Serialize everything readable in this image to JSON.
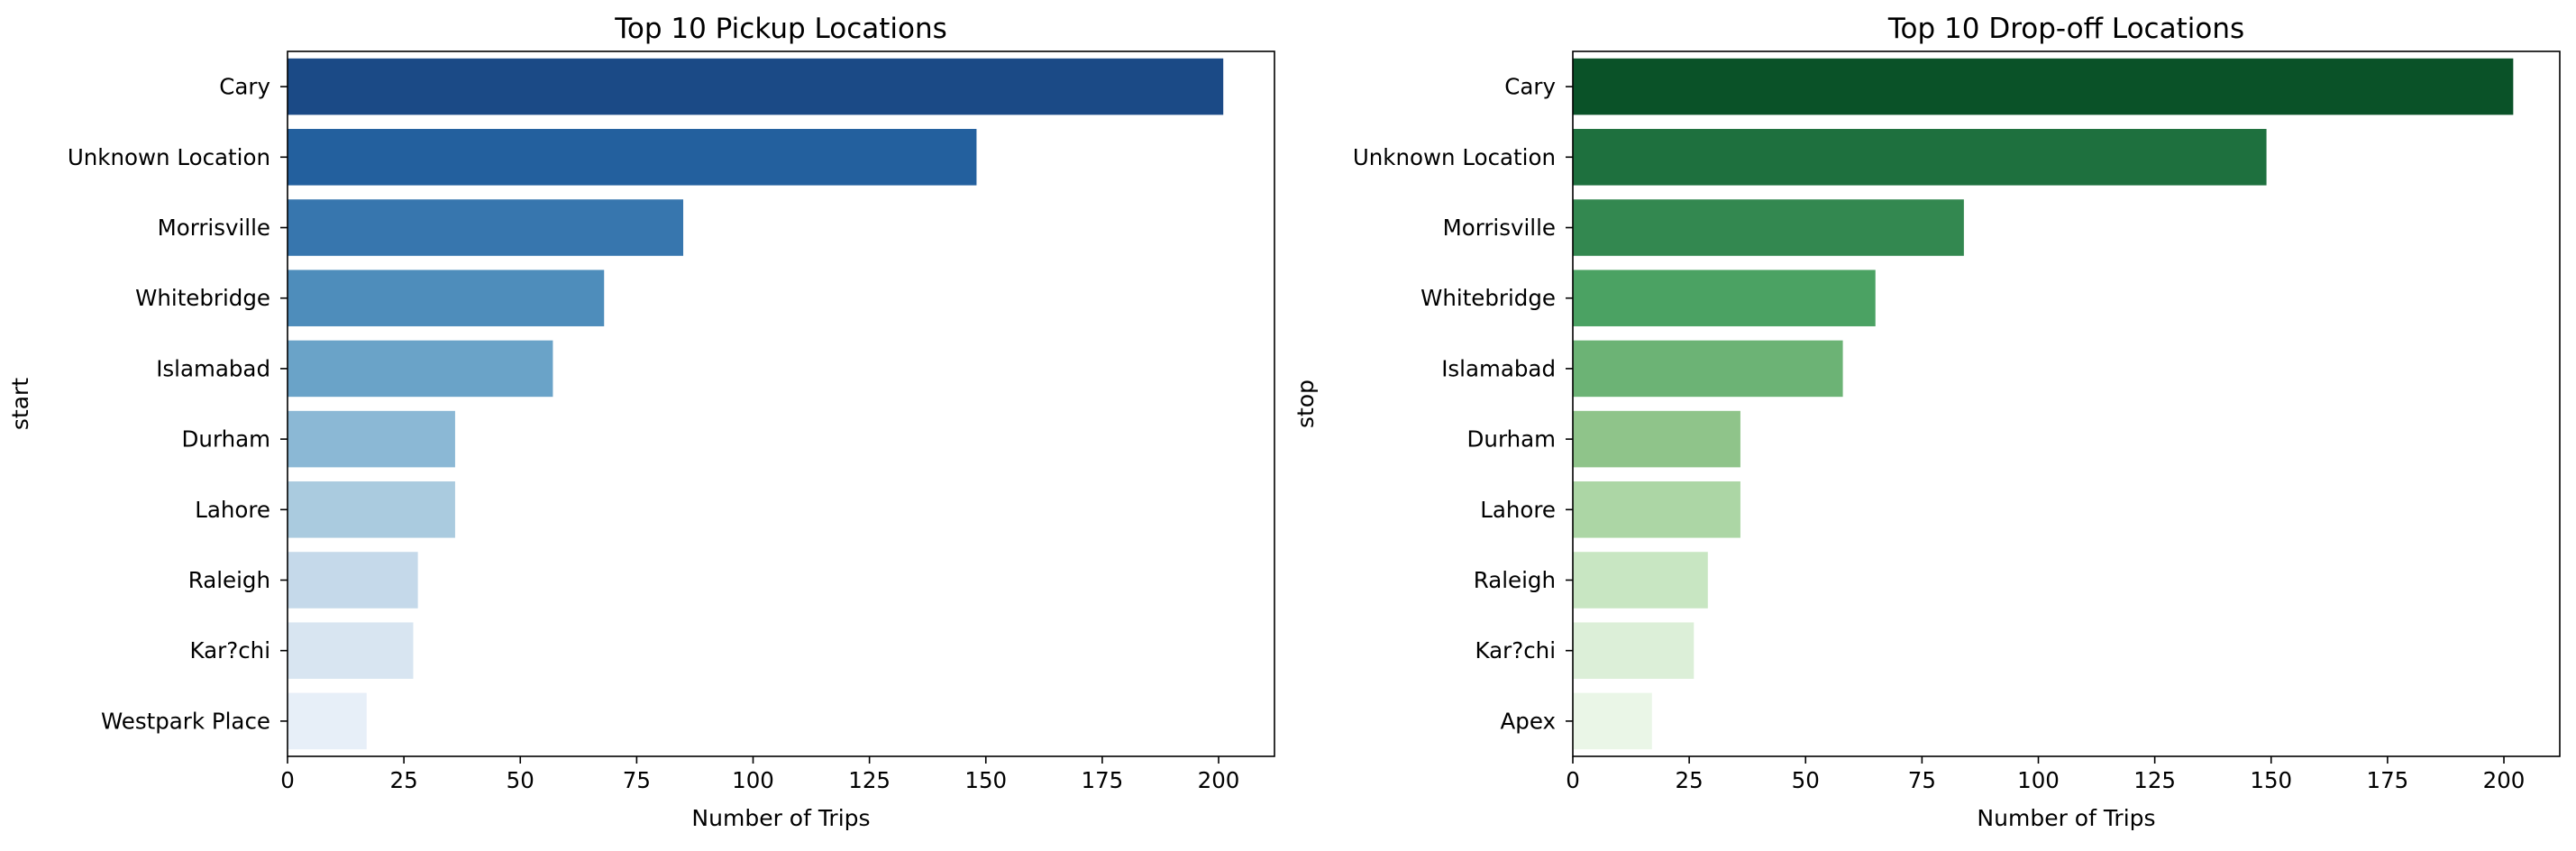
{
  "chart_data": [
    {
      "type": "bar",
      "orientation": "horizontal",
      "title": "Top 10 Pickup Locations",
      "xlabel": "Number of Trips",
      "ylabel": "start",
      "xlim": [
        0,
        212
      ],
      "xticks": [
        0,
        25,
        50,
        75,
        100,
        125,
        150,
        175,
        200
      ],
      "categories": [
        "Cary",
        "Unknown Location",
        "Morrisville",
        "Whitebridge",
        "Islamabad",
        "Durham",
        "Lahore",
        "Raleigh",
        "Kar?chi",
        "Westpark Place"
      ],
      "values": [
        201,
        148,
        85,
        68,
        57,
        36,
        36,
        28,
        27,
        17
      ],
      "colors": [
        "#1b4a86",
        "#23609e",
        "#3776ae",
        "#4e8dbb",
        "#6aa3c8",
        "#8bb8d5",
        "#aacbdf",
        "#c5d9ea",
        "#d8e5f1",
        "#e7eff8"
      ],
      "palette": "Blues (reversed)",
      "grid": false,
      "legend": "none"
    },
    {
      "type": "bar",
      "orientation": "horizontal",
      "title": "Top 10 Drop-off Locations",
      "xlabel": "Number of Trips",
      "ylabel": "stop",
      "xlim": [
        0,
        212
      ],
      "xticks": [
        0,
        25,
        50,
        75,
        100,
        125,
        150,
        175,
        200
      ],
      "categories": [
        "Cary",
        "Unknown Location",
        "Morrisville",
        "Whitebridge",
        "Islamabad",
        "Durham",
        "Lahore",
        "Raleigh",
        "Kar?chi",
        "Apex"
      ],
      "values": [
        202,
        149,
        84,
        65,
        58,
        36,
        36,
        29,
        26,
        17
      ],
      "colors": [
        "#0a5228",
        "#1e703e",
        "#338850",
        "#4ba263",
        "#6cb375",
        "#8fc48a",
        "#acd6a5",
        "#c8e6c2",
        "#dcefd8",
        "#eaf6e7"
      ],
      "palette": "Greens (reversed)",
      "grid": false,
      "legend": "none"
    }
  ]
}
